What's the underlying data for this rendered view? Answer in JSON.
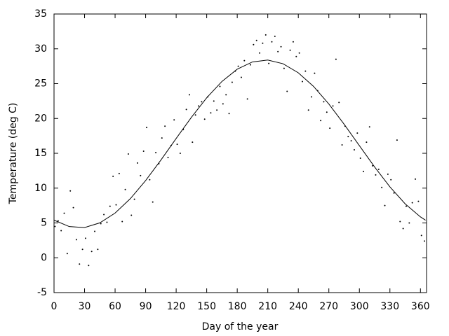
{
  "chart_data": {
    "type": "scatter",
    "x_label": "Day of the year",
    "y_label": "Temperature (deg C)",
    "xlim": [
      0,
      366
    ],
    "ylim": [
      -5,
      35
    ],
    "xticks": [
      0,
      30,
      60,
      90,
      120,
      150,
      180,
      210,
      240,
      270,
      300,
      330,
      360
    ],
    "yticks": [
      -5,
      0,
      5,
      10,
      15,
      20,
      25,
      30,
      35
    ],
    "series": [
      {
        "type": "scatter",
        "color": "#000000",
        "x": [
          1,
          4,
          7,
          10,
          13,
          16,
          19,
          22,
          25,
          28,
          31,
          34,
          37,
          40,
          43,
          46,
          49,
          52,
          55,
          58,
          61,
          64,
          67,
          70,
          73,
          76,
          79,
          82,
          85,
          88,
          91,
          94,
          97,
          100,
          103,
          106,
          109,
          112,
          115,
          118,
          121,
          124,
          127,
          130,
          133,
          136,
          139,
          142,
          145,
          148,
          151,
          154,
          157,
          160,
          163,
          166,
          169,
          172,
          175,
          178,
          181,
          184,
          187,
          190,
          193,
          196,
          199,
          202,
          205,
          208,
          211,
          214,
          217,
          220,
          223,
          226,
          229,
          232,
          235,
          238,
          241,
          244,
          247,
          250,
          253,
          256,
          259,
          262,
          265,
          268,
          271,
          274,
          277,
          280,
          283,
          286,
          289,
          292,
          295,
          298,
          301,
          304,
          307,
          310,
          313,
          316,
          319,
          322,
          325,
          328,
          331,
          334,
          337,
          340,
          343,
          346,
          349,
          352,
          355,
          358,
          361,
          364
        ],
        "values": [
          4.5,
          5.3,
          3.9,
          6.4,
          0.6,
          9.6,
          7.2,
          2.6,
          -0.9,
          1.2,
          2.8,
          -1.1,
          0.9,
          3.8,
          1.2,
          4.9,
          6.2,
          5.1,
          7.4,
          11.7,
          7.6,
          12.1,
          5.2,
          9.8,
          14.9,
          6.1,
          8.4,
          13.6,
          11.8,
          15.3,
          18.7,
          11.2,
          8.0,
          15.1,
          13.5,
          17.2,
          18.9,
          14.4,
          16.1,
          19.8,
          16.3,
          15.0,
          18.4,
          21.3,
          23.4,
          16.6,
          20.5,
          21.8,
          22.4,
          19.9,
          23.1,
          20.8,
          22.5,
          21.2,
          24.6,
          22.1,
          23.4,
          20.7,
          25.2,
          26.8,
          27.5,
          25.9,
          28.3,
          22.8,
          27.7,
          30.6,
          31.2,
          29.4,
          30.8,
          32.0,
          27.9,
          31.0,
          31.8,
          29.6,
          30.3,
          27.2,
          23.9,
          29.8,
          31.0,
          28.9,
          29.4,
          25.3,
          26.8,
          21.2,
          23.1,
          26.5,
          24.0,
          19.7,
          22.4,
          20.9,
          18.6,
          21.8,
          28.5,
          22.3,
          16.2,
          18.9,
          17.4,
          16.8,
          15.5,
          17.9,
          14.3,
          12.4,
          16.6,
          18.8,
          13.2,
          11.9,
          12.7,
          10.1,
          7.5,
          12.0,
          11.2,
          9.3,
          16.9,
          5.2,
          4.2,
          7.4,
          5.0,
          7.9,
          11.3,
          8.1,
          3.2,
          2.4
        ]
      },
      {
        "type": "line",
        "color": "#000000",
        "x": [
          0,
          15,
          30,
          45,
          60,
          75,
          90,
          105,
          120,
          135,
          150,
          165,
          180,
          195,
          210,
          225,
          240,
          255,
          270,
          285,
          300,
          315,
          330,
          345,
          360,
          365
        ],
        "values": [
          5.4,
          4.48,
          4.34,
          5.01,
          6.42,
          8.49,
          11.09,
          14.03,
          17.13,
          20.17,
          22.97,
          25.32,
          27.08,
          28.12,
          28.39,
          27.86,
          26.56,
          24.6,
          22.08,
          19.18,
          16.1,
          13.03,
          10.18,
          7.74,
          5.87,
          5.4
        ]
      }
    ]
  }
}
